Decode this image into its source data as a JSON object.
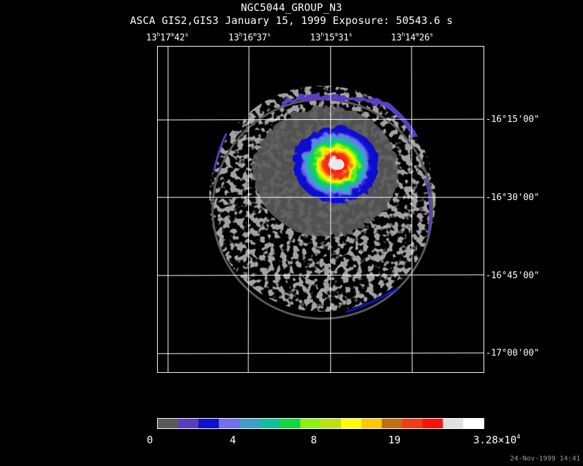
{
  "header": {
    "title": "NGC5044_GROUP_N3",
    "subtitle": "ASCA GIS2,GIS3 January 15, 1999 Exposure: 50543.6 s"
  },
  "ra_labels": [
    {
      "h": "13",
      "m": "17",
      "s": "42"
    },
    {
      "h": "13",
      "m": "16",
      "s": "37"
    },
    {
      "h": "13",
      "m": "15",
      "s": "31"
    },
    {
      "h": "13",
      "m": "14",
      "s": "26"
    }
  ],
  "dec_labels": [
    "-16°15'00\"",
    "-16°30'00\"",
    "-16°45'00\"",
    "-17°00'00\""
  ],
  "colorbar": {
    "colors": [
      "#5a5a5a",
      "#5a3cc0",
      "#1010d0",
      "#7070f0",
      "#3ca0c8",
      "#10c0a0",
      "#10d840",
      "#90f010",
      "#c0e010",
      "#ffff00",
      "#ffc800",
      "#c07010",
      "#f03c18",
      "#ff1010",
      "#e0e0e0",
      "#ffffff"
    ],
    "tick_labels": [
      "0",
      "4",
      "8",
      "19"
    ],
    "max_label_mantissa": "3.28×10",
    "max_label_exponent": "4"
  },
  "timestamp": "24-Nov-1999 14:41"
}
